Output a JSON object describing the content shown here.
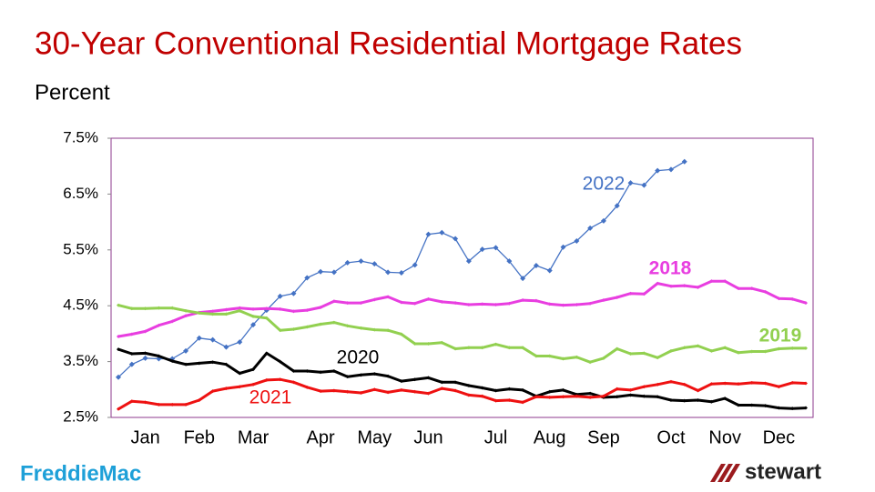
{
  "chart_data": {
    "type": "line",
    "title": "30-Year Conventional Residential Mortgage Rates",
    "y_label": "Percent",
    "categories": [
      null,
      null,
      "Jan",
      null,
      null,
      null,
      "Feb",
      null,
      null,
      null,
      "Mar",
      null,
      null,
      null,
      null,
      "Apr",
      null,
      null,
      null,
      "May",
      null,
      null,
      null,
      "Jun",
      null,
      null,
      null,
      null,
      "Jul",
      null,
      null,
      null,
      "Aug",
      null,
      null,
      null,
      "Sep",
      null,
      null,
      null,
      null,
      "Oct",
      null,
      null,
      null,
      "Nov",
      null,
      null,
      null,
      "Dec",
      null,
      null
    ],
    "ylim": [
      2.5,
      7.5
    ],
    "yticks": [
      {
        "value": 2.5,
        "label": "2.5%"
      },
      {
        "value": 3.5,
        "label": "3.5%"
      },
      {
        "value": 4.5,
        "label": "4.5%"
      },
      {
        "value": 5.5,
        "label": "5.5%"
      },
      {
        "value": 6.5,
        "label": "6.5%"
      },
      {
        "value": 7.5,
        "label": "7.5%"
      }
    ],
    "series": [
      {
        "name": "2022",
        "color": "#4472c4",
        "values": [
          3.22,
          3.45,
          3.56,
          3.55,
          3.55,
          3.69,
          3.92,
          3.89,
          3.76,
          3.85,
          4.16,
          4.42,
          4.67,
          4.72,
          5.0,
          5.11,
          5.1,
          5.27,
          5.3,
          5.25,
          5.1,
          5.09,
          5.23,
          5.78,
          5.81,
          5.7,
          5.3,
          5.51,
          5.54,
          5.3,
          4.99,
          5.22,
          5.13,
          5.55,
          5.66,
          5.89,
          6.02,
          6.29,
          6.7,
          6.66,
          6.92,
          6.94,
          7.08,
          null,
          null,
          null,
          null,
          null,
          null,
          null,
          null,
          null
        ]
      },
      {
        "name": "2018",
        "color": "#e83ee0",
        "values": [
          3.95,
          3.99,
          4.04,
          4.15,
          4.22,
          4.32,
          4.38,
          4.4,
          4.43,
          4.46,
          4.44,
          4.45,
          4.44,
          4.4,
          4.42,
          4.47,
          4.58,
          4.55,
          4.55,
          4.61,
          4.66,
          4.56,
          4.54,
          4.62,
          4.57,
          4.55,
          4.52,
          4.53,
          4.52,
          4.54,
          4.6,
          4.59,
          4.53,
          4.51,
          4.52,
          4.54,
          4.6,
          4.65,
          4.72,
          4.71,
          4.9,
          4.85,
          4.86,
          4.83,
          4.94,
          4.94,
          4.81,
          4.81,
          4.75,
          4.63,
          4.62,
          4.55
        ]
      },
      {
        "name": "2019",
        "color": "#92d050",
        "values": [
          4.51,
          4.45,
          4.45,
          4.46,
          4.46,
          4.41,
          4.37,
          4.35,
          4.35,
          4.41,
          4.31,
          4.28,
          4.06,
          4.08,
          4.12,
          4.17,
          4.2,
          4.14,
          4.1,
          4.07,
          4.06,
          3.99,
          3.82,
          3.82,
          3.84,
          3.73,
          3.75,
          3.75,
          3.81,
          3.75,
          3.75,
          3.6,
          3.6,
          3.55,
          3.58,
          3.49,
          3.56,
          3.73,
          3.64,
          3.65,
          3.57,
          3.69,
          3.75,
          3.78,
          3.69,
          3.75,
          3.66,
          3.68,
          3.68,
          3.73,
          3.74,
          3.74
        ]
      },
      {
        "name": "2020",
        "color": "#000000",
        "values": [
          3.72,
          3.64,
          3.65,
          3.6,
          3.51,
          3.45,
          3.47,
          3.49,
          3.45,
          3.29,
          3.36,
          3.65,
          3.5,
          3.33,
          3.33,
          3.31,
          3.33,
          3.23,
          3.26,
          3.28,
          3.24,
          3.15,
          3.18,
          3.21,
          3.13,
          3.13,
          3.07,
          3.03,
          2.98,
          3.01,
          2.99,
          2.88,
          2.96,
          2.99,
          2.91,
          2.93,
          2.86,
          2.87,
          2.9,
          2.88,
          2.87,
          2.81,
          2.8,
          2.81,
          2.78,
          2.84,
          2.72,
          2.72,
          2.71,
          2.67,
          2.66,
          2.67
        ]
      },
      {
        "name": "2021",
        "color": "#ee1111",
        "values": [
          2.65,
          2.79,
          2.77,
          2.73,
          2.73,
          2.73,
          2.81,
          2.97,
          3.02,
          3.05,
          3.09,
          3.17,
          3.18,
          3.13,
          3.04,
          2.97,
          2.98,
          2.96,
          2.94,
          3.0,
          2.95,
          2.99,
          2.96,
          2.93,
          3.02,
          2.98,
          2.9,
          2.88,
          2.8,
          2.81,
          2.77,
          2.87,
          2.86,
          2.87,
          2.88,
          2.86,
          2.88,
          3.01,
          2.99,
          3.05,
          3.09,
          3.14,
          3.09,
          2.98,
          3.1,
          3.11,
          3.1,
          3.12,
          3.11,
          3.05,
          3.12,
          3.11
        ]
      }
    ]
  },
  "logos": {
    "left": "FreddieMac",
    "right": "stewart"
  }
}
